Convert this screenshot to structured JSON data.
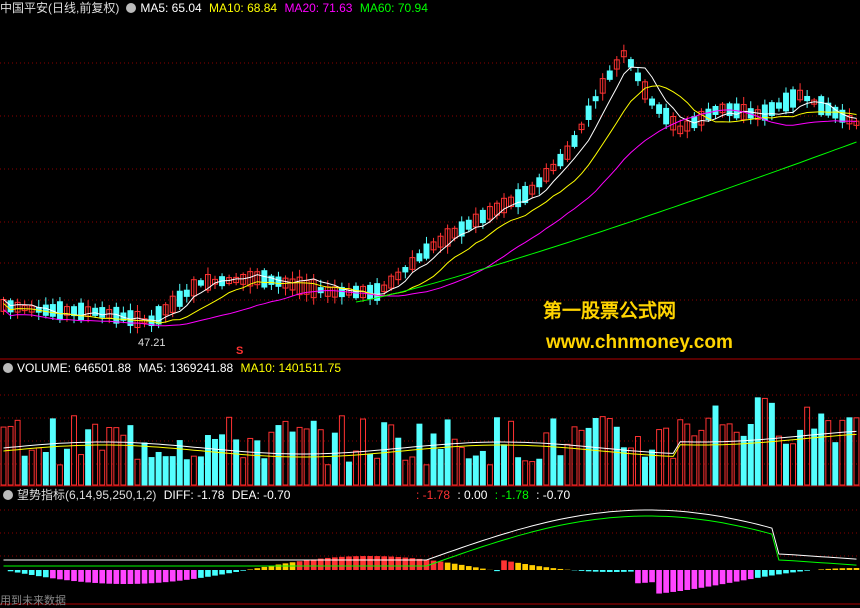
{
  "main_header": {
    "title": "中国平安(日线,前复权)",
    "ma5": "MA5: 65.04",
    "ma10": "MA10: 68.84",
    "ma20": "MA20: 71.63",
    "ma60": "MA60: 70.94"
  },
  "volume_header": {
    "volume": "VOLUME: 646501.88",
    "ma5": "MA5: 1369241.88",
    "ma10": "MA10: 1401511.75"
  },
  "indicator_header": {
    "name": "望势指标(6,14,95,250,1,2)",
    "diff": "DIFF: -1.78",
    "dea": "DEA: -0.70",
    "v1": ": -1.78",
    "v2": ": 0.00",
    "v3": ": -1.78",
    "v4": ": -0.70"
  },
  "price_label": "47.21",
  "signal_marker": "S",
  "watermark": {
    "line1": "第一股票公式网",
    "line2": "www.chnmoney.com"
  },
  "footer_text": "用到未来数据",
  "colors": {
    "up": "#ff3232",
    "down": "#54ffff",
    "ma5": "#ffffff",
    "ma10": "#ffff00",
    "ma20": "#ff00ff",
    "ma60": "#00ff00",
    "grid": "#8b0000",
    "divider": "#b00000"
  },
  "chart_data": [
    {
      "type": "candlestick",
      "series": [
        {
          "name": "MA5"
        },
        {
          "name": "MA10"
        },
        {
          "name": "MA20"
        },
        {
          "name": "MA60"
        }
      ],
      "annotations": [
        {
          "label": "47.21",
          "kind": "low_marker"
        },
        {
          "label": "S",
          "kind": "signal"
        }
      ]
    },
    {
      "type": "bar",
      "series": [
        {
          "name": "VOLUME"
        },
        {
          "name": "MA5"
        },
        {
          "name": "MA10"
        }
      ]
    },
    {
      "type": "bar",
      "series": [
        {
          "name": "DIFF"
        },
        {
          "name": "DEA"
        }
      ]
    }
  ]
}
